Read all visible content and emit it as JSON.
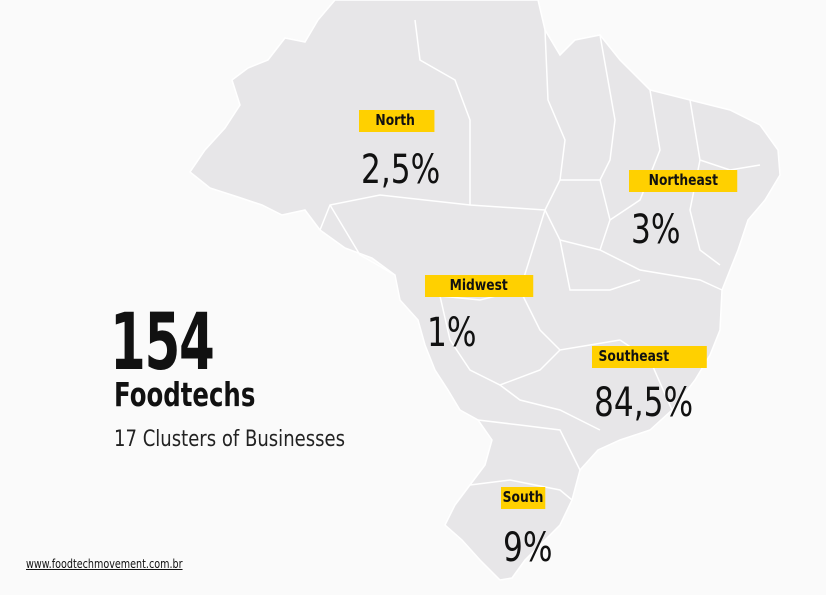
{
  "colors": {
    "background": "#fafafa",
    "land": "#e7e6e8",
    "borders": "#ffffff",
    "label_highlight": "#ffd000",
    "text": "#111111"
  },
  "regions": [
    {
      "name": "North",
      "value": "2,5%"
    },
    {
      "name": "Northeast",
      "value": "3%"
    },
    {
      "name": "Midwest",
      "value": "1%"
    },
    {
      "name": "Southeast",
      "value": "84,5%"
    },
    {
      "name": "South",
      "value": "9%"
    }
  ],
  "summary": {
    "total": "154",
    "total_label": "Foodtechs",
    "clusters": "17 Clusters of Businesses"
  },
  "footer": {
    "url": "www.foodtechmovement.com.br"
  }
}
